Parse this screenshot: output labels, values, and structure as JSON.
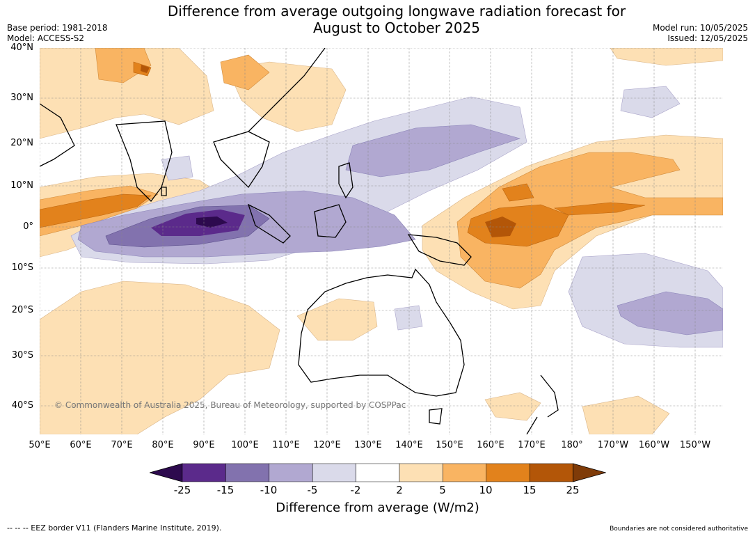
{
  "title_line1": "Difference from average outgoing longwave radiation forecast for",
  "title_line2": "August to October 2025",
  "meta_left": {
    "base_period": "Base period: 1981-2018",
    "model": "Model: ACCESS-S2"
  },
  "meta_right": {
    "model_run": "Model run: 10/05/2025",
    "issued": "Issued: 12/05/2025"
  },
  "lat_labels": [
    "40°N",
    "30°N",
    "20°N",
    "10°N",
    "0°",
    "10°S",
    "20°S",
    "30°S",
    "40°S"
  ],
  "lon_labels": [
    "50°E",
    "60°E",
    "70°E",
    "80°E",
    "90°E",
    "100°E",
    "110°E",
    "120°E",
    "130°E",
    "140°E",
    "150°E",
    "160°E",
    "170°E",
    "180°",
    "170°W",
    "160°W",
    "150°W"
  ],
  "copyright": "© Commonwealth of Australia 2025, Bureau of Meteorology, supported by COSPPac",
  "colorbar": {
    "ticks": [
      "-25",
      "-15",
      "-10",
      "-5",
      "-2",
      "2",
      "5",
      "10",
      "15",
      "25"
    ],
    "colors": [
      "#2d0a4e",
      "#5b2a8b",
      "#8272ae",
      "#b1a8d1",
      "#dadaea",
      "#ffffff",
      "#fde0b4",
      "#f9b462",
      "#e2821c",
      "#b35608",
      "#7f3b08"
    ],
    "label": "Difference from average (W/m2)"
  },
  "footer_left": "-- -- -- EEZ border V11 (Flanders Marine Institute, 2019).",
  "footer_right": "Boundaries are not considered authoritative"
}
